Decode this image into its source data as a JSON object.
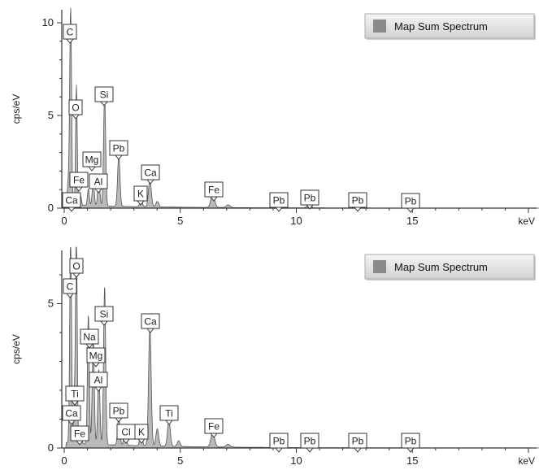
{
  "chart_data": [
    {
      "type": "area",
      "xlabel": "keV",
      "ylabel": "cps/eV",
      "xlim": [
        0,
        20
      ],
      "ylim": [
        0,
        10.5
      ],
      "xticks": [
        0,
        5,
        10,
        15
      ],
      "yticks": [
        0,
        5,
        10
      ],
      "grid": false,
      "legend": {
        "position": "top-right",
        "entries": [
          "Map Sum Spectrum"
        ]
      },
      "series": [
        {
          "name": "Map Sum Spectrum",
          "peaks": [
            {
              "x": 0.18,
              "y": 1.2,
              "w": 0.05
            },
            {
              "x": 0.277,
              "y": 10.5,
              "w": 0.04
            },
            {
              "x": 0.525,
              "y": 6.5,
              "w": 0.035
            },
            {
              "x": 0.71,
              "y": 0.5,
              "w": 0.035
            },
            {
              "x": 1.04,
              "y": 0.9,
              "w": 0.04
            },
            {
              "x": 1.25,
              "y": 1.3,
              "w": 0.045
            },
            {
              "x": 1.49,
              "y": 1.5,
              "w": 0.045
            },
            {
              "x": 1.74,
              "y": 6.0,
              "w": 0.045
            },
            {
              "x": 2.35,
              "y": 2.8,
              "w": 0.05
            },
            {
              "x": 3.31,
              "y": 0.45,
              "w": 0.05
            },
            {
              "x": 3.69,
              "y": 1.5,
              "w": 0.06
            },
            {
              "x": 4.01,
              "y": 0.3,
              "w": 0.06
            },
            {
              "x": 6.4,
              "y": 0.75,
              "w": 0.08
            },
            {
              "x": 7.06,
              "y": 0.15,
              "w": 0.08
            },
            {
              "x": 9.18,
              "y": 0.1,
              "w": 0.09
            },
            {
              "x": 10.55,
              "y": 0.15,
              "w": 0.09
            },
            {
              "x": 12.61,
              "y": 0.08,
              "w": 0.1
            },
            {
              "x": 14.76,
              "y": 0.05,
              "w": 0.1
            }
          ]
        }
      ],
      "annotations": [
        {
          "text": "C",
          "x": 0.277
        },
        {
          "text": "O",
          "x": 0.525
        },
        {
          "text": "Si",
          "x": 1.74
        },
        {
          "text": "Pb",
          "x": 2.35
        },
        {
          "text": "Mg",
          "x": 1.25
        },
        {
          "text": "Fe",
          "x": 0.71
        },
        {
          "text": "Al",
          "x": 1.49
        },
        {
          "text": "Ca",
          "x": 3.69
        },
        {
          "text": "Ca",
          "x": 0.34
        },
        {
          "text": "K",
          "x": 3.31
        },
        {
          "text": "Fe",
          "x": 6.4
        },
        {
          "text": "Pb",
          "x": 9.18
        },
        {
          "text": "Pb",
          "x": 10.55
        },
        {
          "text": "Pb",
          "x": 12.61
        },
        {
          "text": "Pb",
          "x": 14.76
        }
      ]
    },
    {
      "type": "area",
      "xlabel": "keV",
      "ylabel": "cps/eV",
      "xlim": [
        0,
        20
      ],
      "ylim": [
        0,
        7.2
      ],
      "xticks": [
        0,
        5,
        10,
        15
      ],
      "yticks": [
        0,
        5
      ],
      "grid": false,
      "legend": {
        "position": "top-right",
        "entries": [
          "Map Sum Spectrum"
        ]
      },
      "series": [
        {
          "name": "Map Sum Spectrum",
          "peaks": [
            {
              "x": 0.277,
              "y": 7.2,
              "w": 0.04
            },
            {
              "x": 0.45,
              "y": 1.6,
              "w": 0.04
            },
            {
              "x": 0.525,
              "y": 7.2,
              "w": 0.035
            },
            {
              "x": 0.71,
              "y": 0.6,
              "w": 0.035
            },
            {
              "x": 1.04,
              "y": 4.5,
              "w": 0.04
            },
            {
              "x": 1.25,
              "y": 3.6,
              "w": 0.045
            },
            {
              "x": 1.49,
              "y": 2.6,
              "w": 0.045
            },
            {
              "x": 1.74,
              "y": 5.5,
              "w": 0.045
            },
            {
              "x": 2.35,
              "y": 1.0,
              "w": 0.05
            },
            {
              "x": 2.62,
              "y": 0.5,
              "w": 0.05
            },
            {
              "x": 3.31,
              "y": 0.55,
              "w": 0.05
            },
            {
              "x": 3.69,
              "y": 4.2,
              "w": 0.055
            },
            {
              "x": 4.01,
              "y": 0.6,
              "w": 0.06
            },
            {
              "x": 4.51,
              "y": 0.9,
              "w": 0.06
            },
            {
              "x": 4.93,
              "y": 0.2,
              "w": 0.06
            },
            {
              "x": 6.4,
              "y": 0.5,
              "w": 0.08
            },
            {
              "x": 7.06,
              "y": 0.1,
              "w": 0.08
            },
            {
              "x": 9.18,
              "y": 0.08,
              "w": 0.09
            },
            {
              "x": 10.55,
              "y": 0.1,
              "w": 0.09
            },
            {
              "x": 12.61,
              "y": 0.06,
              "w": 0.1
            },
            {
              "x": 14.76,
              "y": 0.05,
              "w": 0.1
            }
          ]
        }
      ],
      "annotations": [
        {
          "text": "O",
          "x": 0.525
        },
        {
          "text": "C",
          "x": 0.277
        },
        {
          "text": "Si",
          "x": 1.74
        },
        {
          "text": "Na",
          "x": 1.04
        },
        {
          "text": "Ca",
          "x": 3.69
        },
        {
          "text": "Mg",
          "x": 1.25
        },
        {
          "text": "Al",
          "x": 1.49
        },
        {
          "text": "Ti",
          "x": 0.45
        },
        {
          "text": "Ca",
          "x": 0.34
        },
        {
          "text": "Pb",
          "x": 2.35
        },
        {
          "text": "Ti",
          "x": 4.51
        },
        {
          "text": "Cl",
          "x": 2.62
        },
        {
          "text": "K",
          "x": 3.31
        },
        {
          "text": "Fe",
          "x": 0.71
        },
        {
          "text": "Fe",
          "x": 6.4
        },
        {
          "text": "Pb",
          "x": 9.18
        },
        {
          "text": "Pb",
          "x": 10.55
        },
        {
          "text": "Pb",
          "x": 12.61
        },
        {
          "text": "Pb",
          "x": 14.76
        }
      ]
    }
  ],
  "colors": {
    "fill": "#b9b9b9",
    "stroke": "#555555",
    "legend_swatch": "#8a8a8a",
    "legend_bg_top": "#f4f4f4",
    "legend_bg_bottom": "#d2d2d2"
  }
}
